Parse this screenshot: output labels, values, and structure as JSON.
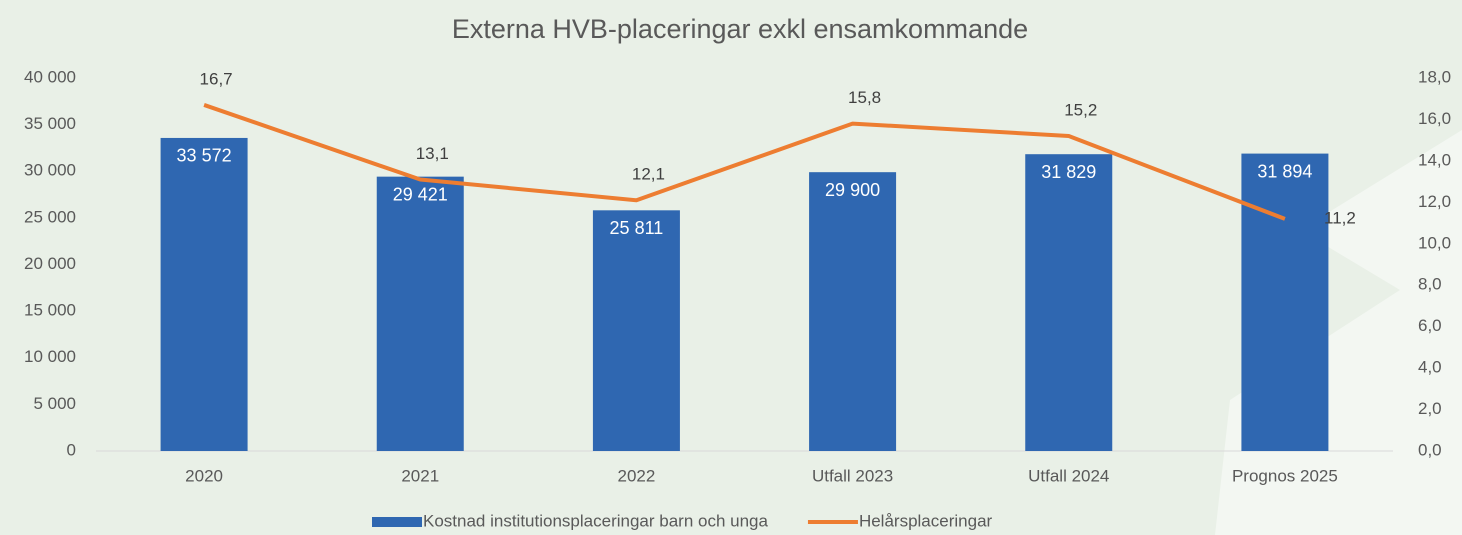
{
  "chart_data": {
    "type": "bar",
    "title": "Externa HVB-placeringar exkl ensamkommande",
    "categories": [
      "2020",
      "2021",
      "2022",
      "Utfall 2023",
      "Utfall 2024",
      "Prognos 2025"
    ],
    "series": [
      {
        "name": "Kostnad institutionsplaceringar barn och unga",
        "type": "bar",
        "color": "#2f67b1",
        "values": [
          33572,
          29421,
          25811,
          29900,
          31829,
          31894
        ],
        "value_labels": [
          "33 572",
          "29 421",
          "25 811",
          "29 900",
          "31 829",
          "31 894"
        ]
      },
      {
        "name": "Helårsplaceringar",
        "type": "line",
        "axis": "y2",
        "color": "#ed7d31",
        "values": [
          16.7,
          13.1,
          12.1,
          15.8,
          15.2,
          11.2
        ],
        "value_labels": [
          "16,7",
          "13,1",
          "12,1",
          "15,8",
          "15,2",
          "11,2"
        ]
      }
    ],
    "ylim": [
      0,
      40000
    ],
    "yticks": [
      0,
      {
        "value": 5000,
        "label": "5 000"
      },
      {
        "value": 10000,
        "label": "10 000"
      },
      {
        "value": 15000,
        "label": "15 000"
      },
      {
        "value": 20000,
        "label": "20 000"
      },
      {
        "value": 25000,
        "label": "25 000"
      },
      {
        "value": 30000,
        "label": "30 000"
      },
      {
        "value": 35000,
        "label": "35 000"
      },
      {
        "value": 40000,
        "label": "40 000"
      }
    ],
    "y2lim": [
      0,
      18
    ],
    "y2ticks": [
      {
        "value": 0,
        "label": "0,0"
      },
      {
        "value": 2,
        "label": "2,0"
      },
      {
        "value": 4,
        "label": "4,0"
      },
      {
        "value": 6,
        "label": "6,0"
      },
      {
        "value": 8,
        "label": "8,0"
      },
      {
        "value": 10,
        "label": "10,0"
      },
      {
        "value": 12,
        "label": "12,0"
      },
      {
        "value": 14,
        "label": "14,0"
      },
      {
        "value": 16,
        "label": "16,0"
      },
      {
        "value": 18,
        "label": "18,0"
      }
    ],
    "grid": false,
    "legend": "bottom"
  }
}
